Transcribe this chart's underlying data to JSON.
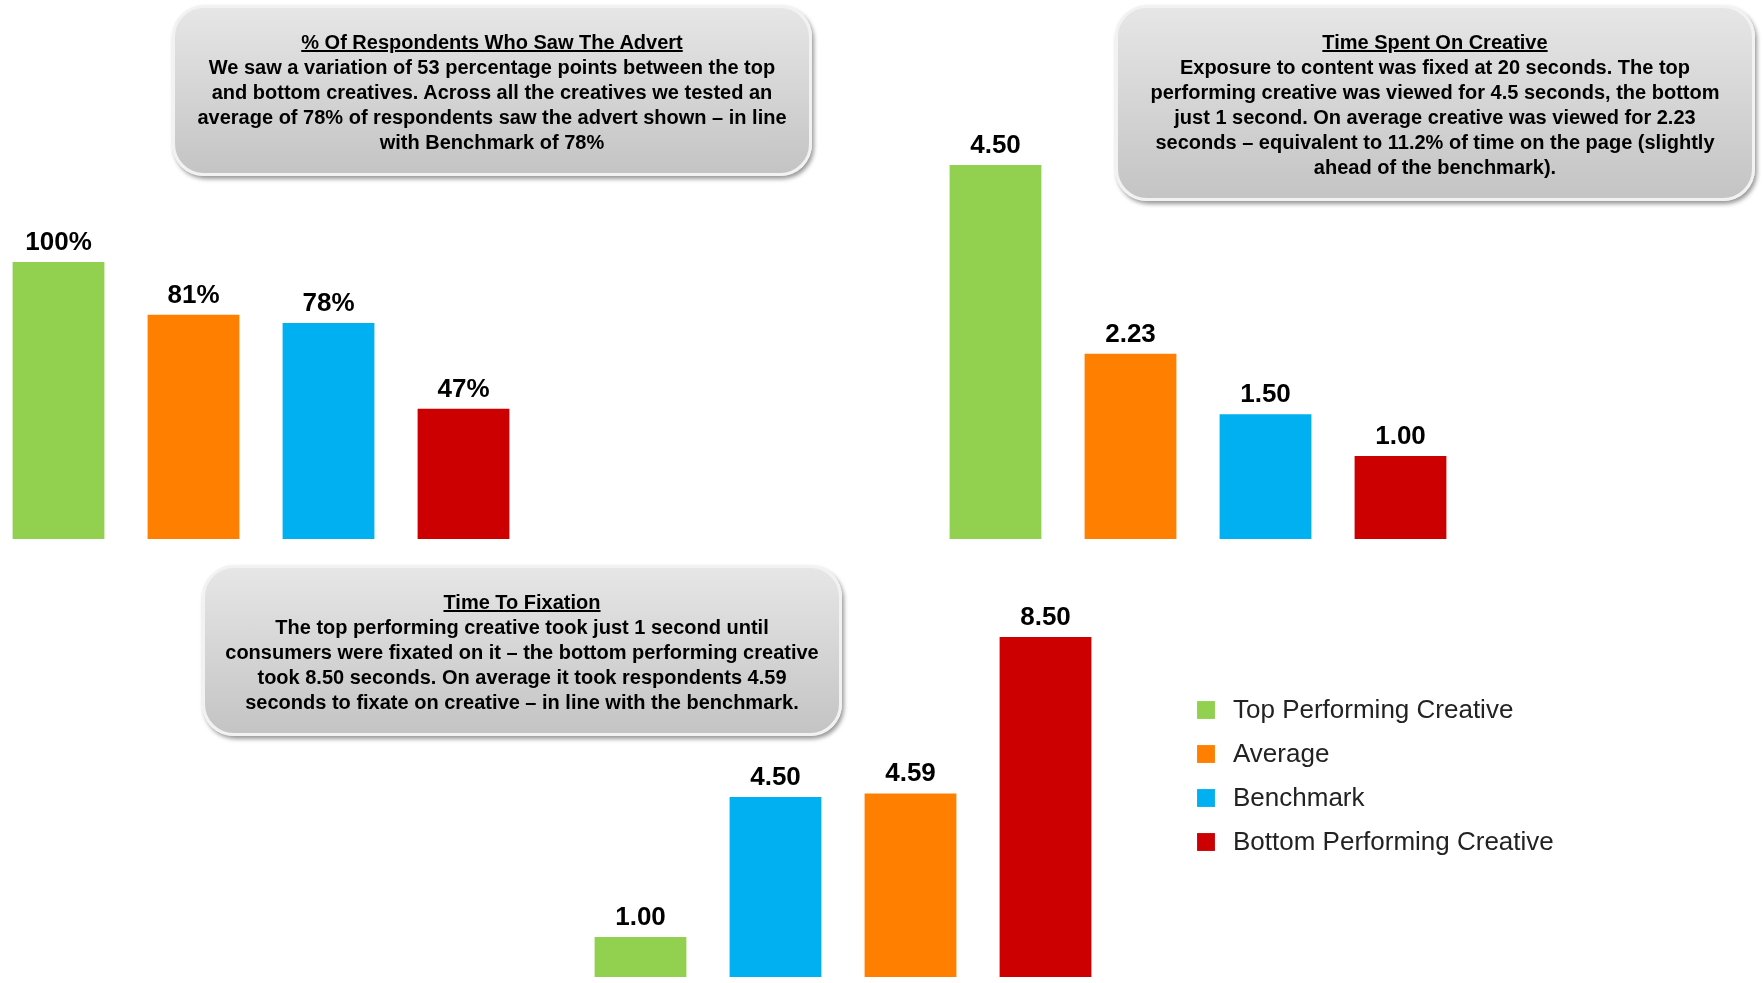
{
  "chart_data": [
    {
      "type": "bar",
      "title": "% Of Respondents Who Saw The Advert",
      "annotations": [
        "We saw a variation of 53 percentage points between the top and bottom creatives.  Across all the creatives we tested an average of 78% of respondents saw the advert shown – in line with Benchmark of 78%"
      ],
      "categories": [
        null,
        null,
        null,
        null
      ],
      "values": [
        100,
        81,
        78,
        47
      ],
      "colors": [
        "#92d050",
        "#ff8000",
        "#00b0f0",
        "#cc0000"
      ],
      "value_labels": [
        "100%",
        "81%",
        "78%",
        "47%"
      ]
    },
    {
      "type": "bar",
      "title": "Time Spent On Creative",
      "annotations": [
        "Exposure to content was fixed at 20 seconds. The top performing creative was viewed for 4.5 seconds, the bottom just 1 second. On average creative was viewed for 2.23 seconds – equivalent to 11.2% of time on the page (slightly ahead of the benchmark)."
      ],
      "categories": [
        null,
        null,
        null,
        null
      ],
      "values": [
        4.5,
        2.23,
        1.5,
        1.0
      ],
      "colors": [
        "#92d050",
        "#ff8000",
        "#00b0f0",
        "#cc0000"
      ],
      "value_labels": [
        "4.50",
        "2.23",
        "1.50",
        "1.00"
      ]
    },
    {
      "type": "bar",
      "title": "Time To Fixation",
      "annotations": [
        "The top performing creative took just 1 second until consumers were fixated on it – the bottom performing creative took 8.50 seconds. On average it took respondents 4.59 seconds to fixate on creative – in line with the benchmark."
      ],
      "categories": [
        null,
        null,
        null,
        null
      ],
      "legend": "right",
      "stacked": true,
      "series": [
        {
          "name": "Top Performing Creative",
          "color": "#92d050",
          "values": [
            1.0,
            null,
            null,
            null
          ],
          "value_labels": [
            "1.00",
            null,
            null,
            null
          ]
        },
        {
          "name": "Average",
          "color": "#ff8000",
          "values": [
            null,
            null,
            4.59,
            null
          ],
          "value_labels": [
            null,
            null,
            "4.59",
            null
          ]
        },
        {
          "name": "Benchmark",
          "color": "#00b0f0",
          "values": [
            null,
            4.5,
            null,
            null
          ],
          "value_labels": [
            null,
            "4.50",
            null,
            null
          ]
        },
        {
          "name": "Bottom Performing Creative",
          "color": "#cc0000",
          "values": [
            null,
            null,
            null,
            8.5
          ],
          "value_labels": [
            null,
            null,
            null,
            "8.50"
          ]
        }
      ]
    }
  ]
}
